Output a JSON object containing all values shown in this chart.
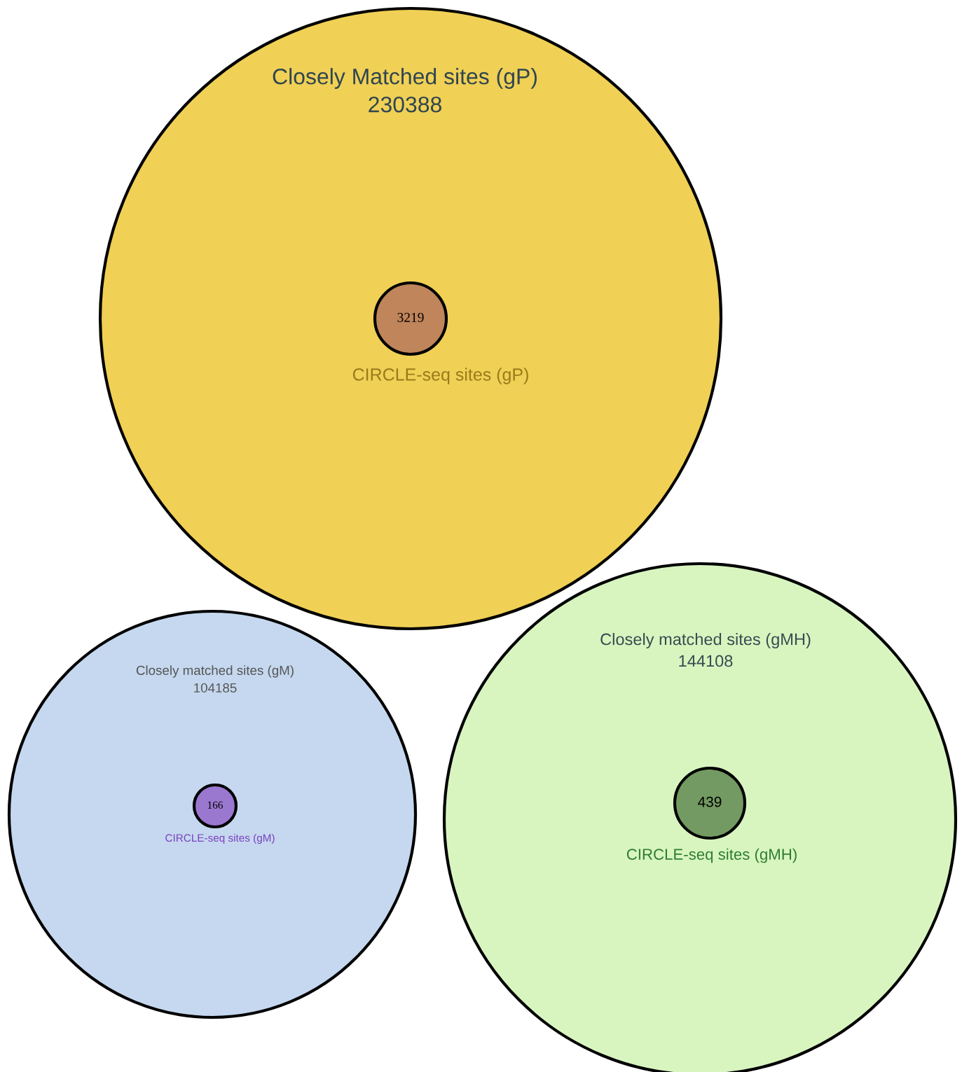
{
  "chart_data": [
    {
      "type": "other",
      "categories": [
        "Closely Matched sites (gP)",
        "CIRCLE-seq sites (gP)"
      ],
      "values": [
        230388,
        3219
      ],
      "data_labels": true,
      "colors": [
        "#f0d055",
        "#c0855a"
      ]
    },
    {
      "type": "other",
      "categories": [
        "Closely matched sites (gM)",
        "CIRCLE-seq sites (gM)"
      ],
      "values": [
        104185,
        166
      ],
      "data_labels": true,
      "colors": [
        "#c5d8ef",
        "#9b78d0"
      ]
    },
    {
      "type": "other",
      "categories": [
        "Closely matched sites (gMH)",
        "CIRCLE-seq sites (gMH)"
      ],
      "values": [
        144108,
        439
      ],
      "data_labels": true,
      "colors": [
        "#d8f5c0",
        "#739a62"
      ]
    }
  ]
}
